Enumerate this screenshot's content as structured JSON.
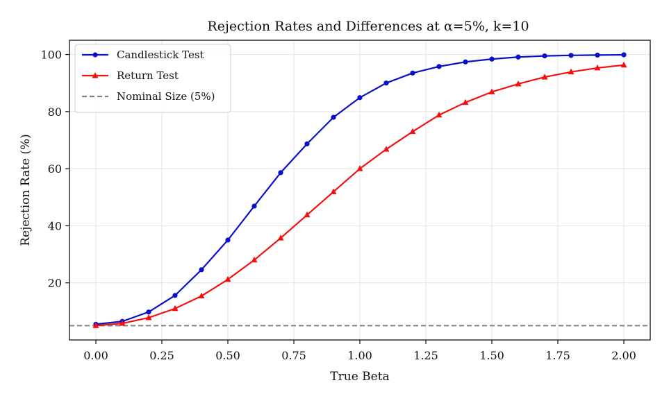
{
  "chart_data": {
    "type": "line",
    "title": "Rejection Rates and Differences at α=5%, k=10",
    "xlabel": "True Beta",
    "ylabel": "Rejection Rate (%)",
    "xlim": [
      -0.1,
      2.1
    ],
    "ylim": [
      0,
      105
    ],
    "xticks": [
      0.0,
      0.25,
      0.5,
      0.75,
      1.0,
      1.25,
      1.5,
      1.75,
      2.0
    ],
    "xtick_labels": [
      "0.00",
      "0.25",
      "0.50",
      "0.75",
      "1.00",
      "1.25",
      "1.50",
      "1.75",
      "2.00"
    ],
    "yticks": [
      20,
      40,
      60,
      80,
      100
    ],
    "ytick_labels": [
      "20",
      "40",
      "60",
      "80",
      "100"
    ],
    "grid": true,
    "legend_position": "upper-left",
    "x": [
      0.0,
      0.1,
      0.2,
      0.3,
      0.4,
      0.5,
      0.6,
      0.7,
      0.8,
      0.9,
      1.0,
      1.1,
      1.2,
      1.3,
      1.4,
      1.5,
      1.6,
      1.7,
      1.8,
      1.9,
      2.0
    ],
    "series": [
      {
        "name": "Candlestick Test",
        "color": "#0a0fc8",
        "marker": "circle",
        "values": [
          5.5,
          6.5,
          9.8,
          15.6,
          24.6,
          35.0,
          46.9,
          58.6,
          68.7,
          78.0,
          84.9,
          90.0,
          93.5,
          95.8,
          97.4,
          98.4,
          99.1,
          99.5,
          99.7,
          99.8,
          99.9
        ]
      },
      {
        "name": "Return Test",
        "color": "#f51010",
        "marker": "triangle",
        "values": [
          5.0,
          5.8,
          7.8,
          11.0,
          15.4,
          21.2,
          28.0,
          35.7,
          43.8,
          51.9,
          60.0,
          66.8,
          73.0,
          78.8,
          83.2,
          86.9,
          89.7,
          92.1,
          93.9,
          95.3,
          96.3
        ]
      }
    ],
    "reference_lines": [
      {
        "name": "Nominal Size (5%)",
        "y": 5,
        "color": "#808080",
        "style": "dashed"
      }
    ]
  }
}
